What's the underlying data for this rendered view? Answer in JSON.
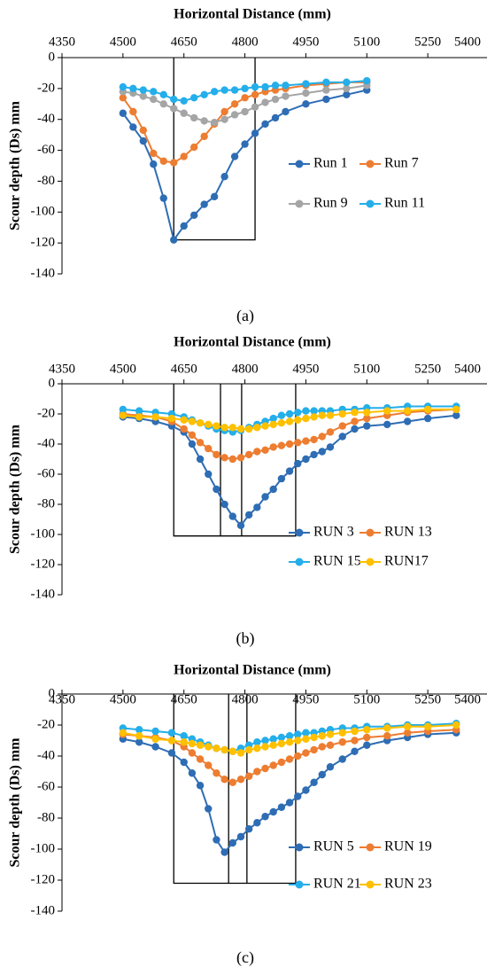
{
  "colors": {
    "Run 1": "#2E6DB4",
    "Run 7": "#ED7D31",
    "Run 9": "#A5A5A5",
    "Run 11": "#24AEEA",
    "RUN 3": "#2E6DB4",
    "RUN 13": "#ED7D31",
    "RUN 15": "#24AEEA",
    "RUN17": "#FFC000",
    "RUN 5": "#2E6DB4",
    "RUN 19": "#ED7D31",
    "RUN 21": "#24AEEA",
    "RUN 23": "#FFC000"
  },
  "chart_data": [
    {
      "type": "line",
      "panel_label": "(a)",
      "xlabel": "Horizontal Distance (mm)",
      "ylabel": "Scour depth (Ds) mm",
      "xlim": [
        4350,
        5400
      ],
      "ylim": [
        -140,
        0
      ],
      "xticks": [
        4350,
        4500,
        4650,
        4800,
        4950,
        5100,
        5250,
        5400
      ],
      "yticks": [
        0,
        -20,
        -40,
        -60,
        -80,
        -100,
        -120,
        -140
      ],
      "grid": false,
      "legend_position": "inside-right",
      "series": [
        {
          "name": "Run 1",
          "x": [
            4500,
            4525,
            4550,
            4575,
            4600,
            4625,
            4650,
            4675,
            4700,
            4725,
            4750,
            4775,
            4800,
            4825,
            4850,
            4875,
            4900,
            4950,
            5000,
            5050,
            5100
          ],
          "y": [
            -36,
            -45,
            -54,
            -69,
            -91,
            -118,
            -109,
            -102,
            -95,
            -90,
            -77,
            -64,
            -56,
            -49,
            -43,
            -39,
            -35,
            -30,
            -27,
            -24,
            -21
          ]
        },
        {
          "name": "Run 7",
          "x": [
            4500,
            4525,
            4550,
            4575,
            4600,
            4625,
            4650,
            4675,
            4700,
            4725,
            4750,
            4775,
            4800,
            4825,
            4850,
            4875,
            4900,
            4950,
            5000,
            5050,
            5100
          ],
          "y": [
            -26,
            -35,
            -47,
            -62,
            -67,
            -68,
            -64,
            -58,
            -51,
            -43,
            -35,
            -30,
            -26,
            -24,
            -22,
            -21,
            -20,
            -18,
            -17,
            -16,
            -16
          ]
        },
        {
          "name": "Run 9",
          "x": [
            4500,
            4525,
            4550,
            4575,
            4600,
            4625,
            4650,
            4675,
            4700,
            4725,
            4750,
            4775,
            4800,
            4825,
            4850,
            4875,
            4900,
            4950,
            5000,
            5050,
            5100
          ],
          "y": [
            -22,
            -23,
            -25,
            -27,
            -30,
            -33,
            -36,
            -39,
            -41,
            -42,
            -40,
            -37,
            -35,
            -32,
            -29,
            -27,
            -25,
            -23,
            -21,
            -20,
            -18
          ]
        },
        {
          "name": "Run 11",
          "x": [
            4500,
            4525,
            4550,
            4575,
            4600,
            4625,
            4650,
            4675,
            4700,
            4725,
            4750,
            4775,
            4800,
            4825,
            4850,
            4875,
            4900,
            4950,
            5000,
            5050,
            5100
          ],
          "y": [
            -19,
            -20,
            -21,
            -22,
            -24,
            -27,
            -28,
            -26,
            -24,
            -22,
            -21,
            -21,
            -20,
            -19,
            -19,
            -18,
            -18,
            -17,
            -16,
            -16,
            -15
          ]
        }
      ],
      "annotation_boxes": [
        {
          "x0": 4625,
          "x1": 4825,
          "y0": 0,
          "y1": -118
        }
      ],
      "legend_layout": [
        [
          "Run 1",
          "Run 7"
        ],
        [
          "Run 9",
          "Run 11"
        ]
      ]
    },
    {
      "type": "line",
      "panel_label": "(b)",
      "xlabel": "Horizontal Distance (mm)",
      "ylabel": "Scour depth (Ds) mm",
      "xlim": [
        4350,
        5400
      ],
      "ylim": [
        -140,
        0
      ],
      "xticks": [
        4350,
        4500,
        4650,
        4800,
        4950,
        5100,
        5250,
        5400
      ],
      "yticks": [
        0,
        -20,
        -40,
        -60,
        -80,
        -100,
        -120,
        -140
      ],
      "grid": false,
      "legend_position": "bottom-right",
      "series": [
        {
          "name": "RUN 3",
          "x": [
            4500,
            4540,
            4580,
            4620,
            4650,
            4670,
            4690,
            4710,
            4730,
            4750,
            4770,
            4790,
            4810,
            4830,
            4850,
            4870,
            4890,
            4910,
            4930,
            4950,
            4970,
            4990,
            5010,
            5040,
            5070,
            5100,
            5150,
            5200,
            5250,
            5320
          ],
          "y": [
            -22,
            -23,
            -25,
            -28,
            -32,
            -40,
            -50,
            -60,
            -70,
            -80,
            -88,
            -94,
            -87,
            -82,
            -75,
            -70,
            -63,
            -58,
            -53,
            -50,
            -47,
            -45,
            -42,
            -35,
            -30,
            -28,
            -27,
            -25,
            -23,
            -21
          ]
        },
        {
          "name": "RUN 13",
          "x": [
            4500,
            4540,
            4580,
            4620,
            4650,
            4670,
            4690,
            4710,
            4730,
            4750,
            4770,
            4790,
            4810,
            4830,
            4850,
            4870,
            4890,
            4910,
            4930,
            4950,
            4970,
            4990,
            5010,
            5040,
            5070,
            5100,
            5150,
            5200,
            5250,
            5320
          ],
          "y": [
            -20,
            -21,
            -22,
            -25,
            -30,
            -34,
            -39,
            -43,
            -47,
            -49,
            -50,
            -49,
            -47,
            -45,
            -44,
            -42,
            -41,
            -40,
            -39,
            -38,
            -37,
            -35,
            -32,
            -28,
            -25,
            -23,
            -21,
            -19,
            -18,
            -17
          ]
        },
        {
          "name": "RUN 15",
          "x": [
            4500,
            4540,
            4580,
            4620,
            4650,
            4670,
            4690,
            4710,
            4730,
            4750,
            4770,
            4790,
            4810,
            4830,
            4850,
            4870,
            4890,
            4910,
            4930,
            4950,
            4970,
            4990,
            5010,
            5040,
            5070,
            5100,
            5150,
            5200,
            5250,
            5320
          ],
          "y": [
            -17,
            -18,
            -19,
            -20,
            -22,
            -24,
            -26,
            -28,
            -30,
            -31,
            -32,
            -31,
            -29,
            -27,
            -25,
            -23,
            -21,
            -20,
            -19,
            -18,
            -18,
            -18,
            -18,
            -17,
            -17,
            -16,
            -16,
            -15,
            -15,
            -15
          ]
        },
        {
          "name": "RUN17",
          "x": [
            4500,
            4540,
            4580,
            4620,
            4650,
            4670,
            4690,
            4710,
            4730,
            4750,
            4770,
            4790,
            4810,
            4830,
            4850,
            4870,
            4890,
            4910,
            4930,
            4950,
            4970,
            4990,
            5010,
            5040,
            5070,
            5100,
            5150,
            5200,
            5250,
            5320
          ],
          "y": [
            -21,
            -22,
            -22,
            -23,
            -24,
            -25,
            -26,
            -27,
            -28,
            -29,
            -29,
            -30,
            -30,
            -29,
            -28,
            -27,
            -26,
            -25,
            -24,
            -23,
            -22,
            -21,
            -21,
            -20,
            -19,
            -19,
            -18,
            -18,
            -17,
            -17
          ]
        }
      ],
      "annotation_boxes": [
        {
          "x0": 4625,
          "x1": 4925,
          "y0": 0,
          "y1": -101
        },
        {
          "x0": 4740,
          "x1": 4740,
          "y0": 0,
          "y1": -101
        },
        {
          "x0": 4792,
          "x1": 4792,
          "y0": 0,
          "y1": -101
        }
      ],
      "legend_layout": [
        [
          "RUN 3",
          "RUN 13"
        ],
        [
          "RUN 15",
          "RUN17"
        ]
      ]
    },
    {
      "type": "line",
      "panel_label": "(c)",
      "xlabel": "Horizontal Distance (mm)",
      "ylabel": "Scour depth (Ds) mm",
      "xlim": [
        4350,
        5400
      ],
      "ylim": [
        -140,
        0
      ],
      "xticks": [
        4350,
        4500,
        4650,
        4800,
        4950,
        5100,
        5250,
        5400
      ],
      "yticks": [
        0,
        -20,
        -40,
        -60,
        -80,
        -100,
        -120,
        -140
      ],
      "grid": false,
      "legend_position": "bottom-right",
      "series": [
        {
          "name": "RUN 5",
          "x": [
            4500,
            4540,
            4580,
            4620,
            4650,
            4670,
            4690,
            4710,
            4730,
            4750,
            4770,
            4790,
            4810,
            4830,
            4850,
            4870,
            4890,
            4910,
            4930,
            4950,
            4970,
            4990,
            5010,
            5040,
            5070,
            5100,
            5150,
            5200,
            5250,
            5320
          ],
          "y": [
            -29,
            -31,
            -34,
            -38,
            -44,
            -51,
            -59,
            -74,
            -94,
            -102,
            -96,
            -92,
            -87,
            -83,
            -79,
            -76,
            -73,
            -70,
            -66,
            -62,
            -57,
            -52,
            -47,
            -42,
            -37,
            -33,
            -30,
            -28,
            -26,
            -25
          ]
        },
        {
          "name": "RUN 19",
          "x": [
            4500,
            4540,
            4580,
            4620,
            4650,
            4670,
            4690,
            4710,
            4730,
            4750,
            4770,
            4790,
            4810,
            4830,
            4850,
            4870,
            4890,
            4910,
            4930,
            4950,
            4970,
            4990,
            5010,
            5040,
            5070,
            5100,
            5150,
            5200,
            5250,
            5320
          ],
          "y": [
            -26,
            -27,
            -28,
            -30,
            -34,
            -38,
            -42,
            -46,
            -51,
            -55,
            -57,
            -55,
            -53,
            -50,
            -48,
            -46,
            -44,
            -42,
            -40,
            -38,
            -36,
            -34,
            -33,
            -31,
            -30,
            -28,
            -27,
            -25,
            -24,
            -23
          ]
        },
        {
          "name": "RUN 21",
          "x": [
            4500,
            4540,
            4580,
            4620,
            4650,
            4670,
            4690,
            4710,
            4730,
            4750,
            4770,
            4790,
            4810,
            4830,
            4850,
            4870,
            4890,
            4910,
            4930,
            4950,
            4970,
            4990,
            5010,
            5040,
            5070,
            5100,
            5150,
            5200,
            5250,
            5320
          ],
          "y": [
            -22,
            -23,
            -24,
            -25,
            -27,
            -29,
            -31,
            -33,
            -35,
            -36,
            -37,
            -35,
            -33,
            -31,
            -30,
            -29,
            -28,
            -27,
            -26,
            -25,
            -25,
            -24,
            -23,
            -22,
            -22,
            -21,
            -21,
            -20,
            -20,
            -19
          ]
        },
        {
          "name": "RUN 23",
          "x": [
            4500,
            4540,
            4580,
            4620,
            4650,
            4670,
            4690,
            4710,
            4730,
            4750,
            4770,
            4790,
            4810,
            4830,
            4850,
            4870,
            4890,
            4910,
            4930,
            4950,
            4970,
            4990,
            5010,
            5040,
            5070,
            5100,
            5150,
            5200,
            5250,
            5320
          ],
          "y": [
            -25,
            -27,
            -29,
            -30,
            -31,
            -32,
            -33,
            -34,
            -35,
            -36,
            -37,
            -38,
            -36,
            -35,
            -34,
            -33,
            -32,
            -31,
            -30,
            -29,
            -28,
            -27,
            -26,
            -25,
            -24,
            -23,
            -22,
            -21,
            -21,
            -20
          ]
        }
      ],
      "annotation_boxes": [
        {
          "x0": 4625,
          "x1": 4925,
          "y0": 0,
          "y1": -122
        },
        {
          "x0": 4760,
          "x1": 4760,
          "y0": 0,
          "y1": -122
        },
        {
          "x0": 4805,
          "x1": 4805,
          "y0": 0,
          "y1": -122
        }
      ],
      "legend_layout": [
        [
          "RUN 5",
          "RUN 19"
        ],
        [
          "RUN 21",
          "RUN 23"
        ]
      ]
    }
  ]
}
